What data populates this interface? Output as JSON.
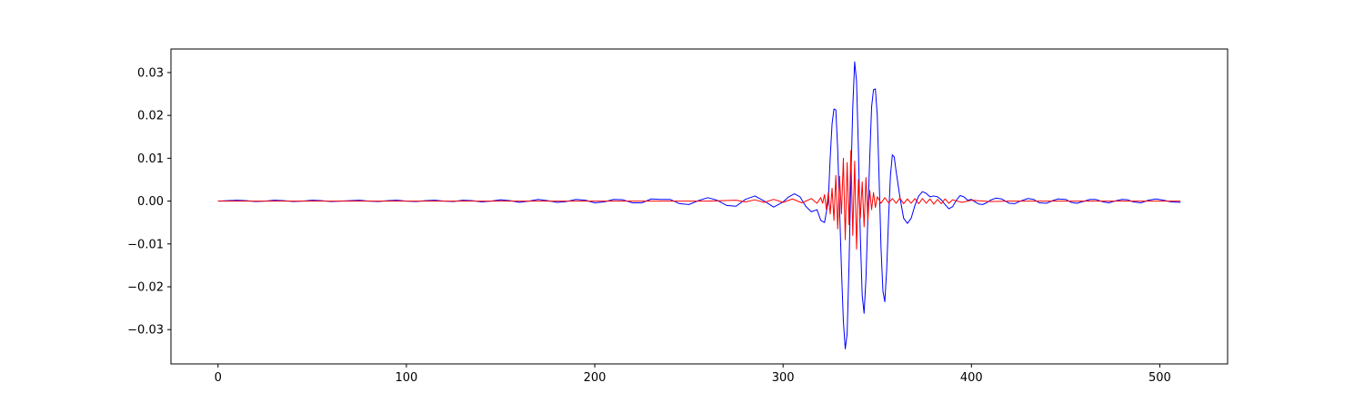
{
  "chart_data": {
    "type": "line",
    "title": "",
    "xlabel": "",
    "ylabel": "",
    "xlim": [
      -25,
      536
    ],
    "ylim": [
      -0.038,
      0.0355
    ],
    "grid": false,
    "legend": "none",
    "x_ticks": [
      0,
      100,
      200,
      300,
      400,
      500
    ],
    "x_tick_labels": [
      "0",
      "100",
      "200",
      "300",
      "400",
      "500"
    ],
    "y_ticks": [
      -0.03,
      -0.02,
      -0.01,
      0.0,
      0.01,
      0.02,
      0.03
    ],
    "y_tick_labels": [
      "−0.03",
      "−0.02",
      "−0.01",
      "0.00",
      "0.01",
      "0.02",
      "0.03"
    ],
    "series": [
      {
        "color": "#0000ff",
        "x_range": [
          0,
          511
        ],
        "points": [
          [
            0,
            0.0
          ],
          [
            5,
            0.0001
          ],
          [
            10,
            0.0002
          ],
          [
            15,
            0.0001
          ],
          [
            20,
            -0.0001
          ],
          [
            25,
            0.0
          ],
          [
            30,
            0.0002
          ],
          [
            35,
            0.0001
          ],
          [
            40,
            -0.0001
          ],
          [
            45,
            0.0
          ],
          [
            50,
            0.0002
          ],
          [
            55,
            0.0001
          ],
          [
            60,
            -0.0001
          ],
          [
            65,
            0.0
          ],
          [
            70,
            0.0001
          ],
          [
            75,
            0.0002
          ],
          [
            80,
            0.0
          ],
          [
            85,
            -0.0001
          ],
          [
            90,
            0.0001
          ],
          [
            95,
            0.0002
          ],
          [
            100,
            0.0
          ],
          [
            105,
            -0.0001
          ],
          [
            110,
            0.0001
          ],
          [
            115,
            0.0002
          ],
          [
            120,
            0.0
          ],
          [
            125,
            -0.0001
          ],
          [
            130,
            0.0002
          ],
          [
            135,
            0.0001
          ],
          [
            140,
            -0.0002
          ],
          [
            145,
            0.0
          ],
          [
            150,
            0.0003
          ],
          [
            155,
            0.0001
          ],
          [
            160,
            -0.0003
          ],
          [
            165,
            0.0
          ],
          [
            170,
            0.0004
          ],
          [
            175,
            0.0001
          ],
          [
            180,
            -0.0003
          ],
          [
            185,
            -0.0001
          ],
          [
            190,
            0.0004
          ],
          [
            195,
            0.0002
          ],
          [
            200,
            -0.0004
          ],
          [
            205,
            -0.0002
          ],
          [
            210,
            0.0004
          ],
          [
            215,
            0.0003
          ],
          [
            220,
            -0.0004
          ],
          [
            225,
            -0.0004
          ],
          [
            230,
            0.0005
          ],
          [
            235,
            0.0004
          ],
          [
            240,
            0.0004
          ],
          [
            245,
            -0.0006
          ],
          [
            250,
            -0.0008
          ],
          [
            255,
            0.0001
          ],
          [
            260,
            0.0008
          ],
          [
            265,
            0.0002
          ],
          [
            270,
            -0.001
          ],
          [
            275,
            -0.0012
          ],
          [
            280,
            0.0004
          ],
          [
            285,
            0.0012
          ],
          [
            290,
            0.0
          ],
          [
            295,
            -0.0014
          ],
          [
            300,
            -0.0002
          ],
          [
            303,
            0.001
          ],
          [
            306,
            0.0017
          ],
          [
            309,
            0.001
          ],
          [
            312,
            -0.0012
          ],
          [
            315,
            -0.0025
          ],
          [
            318,
            -0.002
          ],
          [
            320,
            -0.0045
          ],
          [
            322,
            -0.005
          ],
          [
            324,
            0.0
          ],
          [
            325,
            0.01
          ],
          [
            326,
            0.018
          ],
          [
            327,
            0.0215
          ],
          [
            328,
            0.0213
          ],
          [
            329,
            0.012
          ],
          [
            330,
            -0.002
          ],
          [
            331,
            -0.016
          ],
          [
            332,
            -0.028
          ],
          [
            333,
            -0.0345
          ],
          [
            334,
            -0.031
          ],
          [
            335,
            -0.015
          ],
          [
            336,
            0.005
          ],
          [
            337,
            0.022
          ],
          [
            338,
            0.0325
          ],
          [
            339,
            0.028
          ],
          [
            340,
            0.012
          ],
          [
            341,
            -0.008
          ],
          [
            342,
            -0.022
          ],
          [
            343,
            -0.0262
          ],
          [
            344,
            -0.018
          ],
          [
            345,
            -0.004
          ],
          [
            346,
            0.01
          ],
          [
            347,
            0.022
          ],
          [
            348,
            0.026
          ],
          [
            349,
            0.0262
          ],
          [
            350,
            0.02
          ],
          [
            351,
            0.005
          ],
          [
            352,
            -0.011
          ],
          [
            353,
            -0.021
          ],
          [
            354,
            -0.0235
          ],
          [
            355,
            -0.016
          ],
          [
            356,
            -0.004
          ],
          [
            357,
            0.006
          ],
          [
            358,
            0.0108
          ],
          [
            359,
            0.0103
          ],
          [
            360,
            0.007
          ],
          [
            362,
            0.001
          ],
          [
            364,
            -0.004
          ],
          [
            366,
            -0.0052
          ],
          [
            368,
            -0.004
          ],
          [
            370,
            -0.001
          ],
          [
            372,
            0.0012
          ],
          [
            374,
            0.0022
          ],
          [
            376,
            0.0018
          ],
          [
            378,
            0.001
          ],
          [
            380,
            0.0012
          ],
          [
            382,
            0.001
          ],
          [
            384,
            0.0003
          ],
          [
            386,
            -0.0008
          ],
          [
            388,
            -0.0018
          ],
          [
            390,
            -0.0013
          ],
          [
            392,
            0.0002
          ],
          [
            394,
            0.0013
          ],
          [
            396,
            0.001
          ],
          [
            398,
            0.0002
          ],
          [
            400,
            0.0004
          ],
          [
            402,
            -0.0002
          ],
          [
            404,
            -0.0007
          ],
          [
            406,
            -0.0008
          ],
          [
            408,
            -0.0004
          ],
          [
            410,
            0.0002
          ],
          [
            413,
            0.0007
          ],
          [
            416,
            0.0005
          ],
          [
            420,
            -0.0005
          ],
          [
            423,
            -0.0006
          ],
          [
            426,
            0.0
          ],
          [
            430,
            0.0006
          ],
          [
            433,
            0.0004
          ],
          [
            436,
            -0.0004
          ],
          [
            440,
            -0.0005
          ],
          [
            443,
            0.0001
          ],
          [
            446,
            0.0005
          ],
          [
            450,
            0.0004
          ],
          [
            453,
            -0.0003
          ],
          [
            456,
            -0.0005
          ],
          [
            460,
            0.0
          ],
          [
            463,
            0.0004
          ],
          [
            466,
            0.0004
          ],
          [
            470,
            -0.0002
          ],
          [
            473,
            -0.0004
          ],
          [
            476,
            0.0
          ],
          [
            480,
            0.0004
          ],
          [
            483,
            0.0003
          ],
          [
            486,
            -0.0002
          ],
          [
            490,
            -0.0004
          ],
          [
            494,
            0.0002
          ],
          [
            498,
            0.0005
          ],
          [
            502,
            0.0002
          ],
          [
            506,
            -0.0002
          ],
          [
            511,
            -0.0003
          ]
        ]
      },
      {
        "color": "#ff0000",
        "x_range": [
          0,
          511
        ],
        "points": [
          [
            0,
            0.0
          ],
          [
            260,
            0.0
          ],
          [
            275,
            0.0002
          ],
          [
            280,
            -0.0002
          ],
          [
            285,
            0.0003
          ],
          [
            290,
            -0.0003
          ],
          [
            295,
            0.0004
          ],
          [
            300,
            -0.0003
          ],
          [
            305,
            0.0005
          ],
          [
            310,
            -0.0004
          ],
          [
            315,
            0.0006
          ],
          [
            318,
            -0.0005
          ],
          [
            320,
            0.0008
          ],
          [
            321,
            -0.0005
          ],
          [
            322,
            0.0015
          ],
          [
            323,
            -0.002
          ],
          [
            324,
            0.002
          ],
          [
            325,
            -0.003
          ],
          [
            326,
            0.003
          ],
          [
            327,
            -0.0045
          ],
          [
            328,
            0.006
          ],
          [
            329,
            -0.0065
          ],
          [
            330,
            0.0058
          ],
          [
            331,
            -0.003
          ],
          [
            332,
            0.01
          ],
          [
            333,
            -0.009
          ],
          [
            334,
            0.009
          ],
          [
            335,
            -0.0055
          ],
          [
            336,
            0.0118
          ],
          [
            337,
            -0.008
          ],
          [
            338,
            0.0093
          ],
          [
            339,
            -0.0112
          ],
          [
            340,
            0.005
          ],
          [
            341,
            -0.004
          ],
          [
            342,
            0.0045
          ],
          [
            343,
            -0.006
          ],
          [
            344,
            0.0055
          ],
          [
            345,
            -0.0045
          ],
          [
            346,
            0.0025
          ],
          [
            347,
            -0.002
          ],
          [
            348,
            0.002
          ],
          [
            349,
            -0.0015
          ],
          [
            350,
            0.001
          ],
          [
            352,
            -0.0005
          ],
          [
            354,
            0.0008
          ],
          [
            356,
            -0.0004
          ],
          [
            358,
            0.0006
          ],
          [
            360,
            -0.0005
          ],
          [
            362,
            0.0007
          ],
          [
            364,
            -0.0006
          ],
          [
            366,
            0.0005
          ],
          [
            368,
            -0.0005
          ],
          [
            370,
            0.0006
          ],
          [
            372,
            -0.0006
          ],
          [
            374,
            0.0006
          ],
          [
            376,
            -0.0005
          ],
          [
            378,
            0.0005
          ],
          [
            380,
            -0.0007
          ],
          [
            382,
            0.0004
          ],
          [
            384,
            -0.0006
          ],
          [
            386,
            0.0005
          ],
          [
            388,
            -0.0005
          ],
          [
            390,
            0.0003
          ],
          [
            395,
            -0.0003
          ],
          [
            400,
            0.0002
          ],
          [
            410,
            -0.0001
          ],
          [
            420,
            0.0
          ],
          [
            511,
            0.0
          ]
        ]
      }
    ]
  }
}
